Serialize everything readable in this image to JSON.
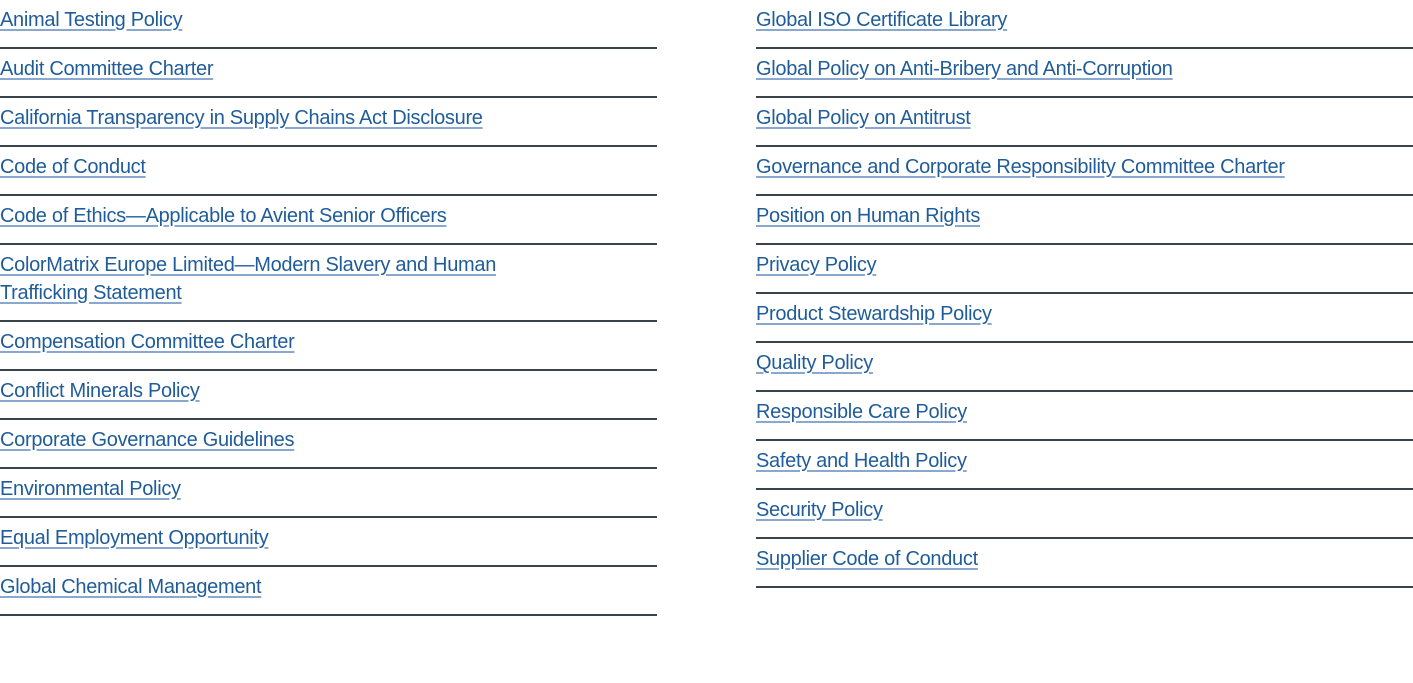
{
  "left_links": [
    "Animal Testing Policy",
    "Audit Committee Charter ",
    "California Transparency in Supply Chains Act Disclosure",
    "Code of Conduct",
    "Code of Ethics—Applicable to Avient Senior Officers",
    "ColorMatrix Europe Limited—Modern Slavery and Human Trafficking Statement ",
    "Compensation Committee Charter ",
    "Conflict Minerals Policy",
    "Corporate Governance Guidelines",
    "Environmental Policy",
    "Equal Employment Opportunity",
    "Global Chemical Management"
  ],
  "right_links": [
    "Global ISO Certificate Library",
    "Global Policy on Anti-Bribery and Anti-Corruption",
    "Global Policy on Antitrust",
    "Governance and Corporate Responsibility Committee Charter ",
    "Position on Human Rights",
    "Privacy Policy ",
    "Product Stewardship Policy",
    "Quality Policy",
    "Responsible Care Policy",
    "Safety and Health Policy",
    "Security Policy",
    "Supplier Code of Conduct"
  ],
  "colors": {
    "link": "#1f5c99",
    "underline": "#88a8d0",
    "divider": "#3a434c"
  }
}
